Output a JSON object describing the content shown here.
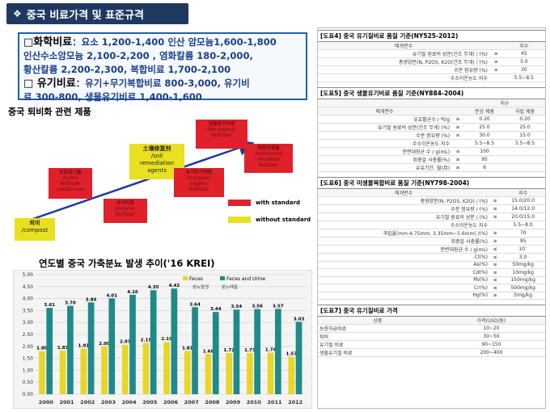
{
  "title": {
    "bullet": "❖",
    "text": "중국 비료가격 및 표준규격"
  },
  "prices": {
    "chem_label": "□화학비료",
    "chem_line1": "：요소 1,200-1,400 인산 암모늄1,600-1,800",
    "chem_line2": "인산수소암모늄 2,100-2,200 , 염화칼륨 180-2,000,",
    "chem_line3": "황산칼륨 2,200-2,300, 복합비료 1,700-2,100",
    "org_label": "□ 유기비료",
    "org_line1": "：유기+무기복합비료 800-3,000,  유기비",
    "org_line2": "료 300-800, 생물유기비료 1,400-1,600"
  },
  "diagram": {
    "label": "중국 퇴비화 관련 제품",
    "boxes": [
      {
        "name": "compost",
        "text": "퇴비\n/compost",
        "color": "yellow"
      },
      {
        "name": "humic",
        "text": "토양유기물\n/humic\nfertilizer\nsubstances",
        "color": "red"
      },
      {
        "name": "organic",
        "text": "유기비료\n/organic\nfertilizer",
        "color": "red"
      },
      {
        "name": "soil",
        "text": "土壤修复剂\n/soil\nremediation\nagents",
        "color": "yellow"
      },
      {
        "name": "bio-organic",
        "text": "생물유기비료\n/bio-organic\nfertilizer",
        "color": "red"
      },
      {
        "name": "inorganic",
        "text": "유기무기복합\n/inorganic\norganic\nfertilizer",
        "color": "red"
      },
      {
        "name": "compound",
        "text": "복합미생물\n/compound\nmicrobial\nfertilizer",
        "color": "red"
      }
    ],
    "legend": {
      "with": "with standard",
      "without": "without standard"
    }
  },
  "chart_data": {
    "type": "bar",
    "title": "연도별 중국 가축분뇨 발생 추이('16 KREI)",
    "categories": [
      "2000",
      "2001",
      "2002",
      "2003",
      "2004",
      "2005",
      "2006",
      "2007",
      "2008",
      "2009",
      "2010",
      "2011",
      "2012"
    ],
    "series": [
      {
        "name": "Feces",
        "values": [
          1.8,
          1.83,
          1.91,
          2.0,
          2.07,
          2.15,
          2.19,
          1.81,
          1.68,
          1.72,
          1.73,
          1.74,
          1.57
        ],
        "color": "#e8d628"
      },
      {
        "name": "Feces and Urine",
        "values": [
          3.61,
          3.7,
          3.84,
          4.01,
          4.16,
          4.35,
          4.42,
          3.64,
          3.44,
          3.54,
          3.56,
          3.57,
          3.03
        ],
        "color": "#1f8a8a"
      }
    ],
    "legend_note1": "분뇨발생",
    "legend_note2": "분뇨배출",
    "ylim": [
      0,
      5
    ],
    "yticks": [
      "0.00",
      "0.50",
      "1.00",
      "1.50",
      "2.00",
      "2.50",
      "3.00",
      "3.50",
      "4.00",
      "4.50",
      "5.00"
    ]
  },
  "standards": {
    "t1": {
      "title": "[도표4] 중국 유기질비료 품질 기준(NY525-2012)",
      "header": [
        "매개변수",
        "",
        "지수"
      ],
      "rows": [
        [
          "유기질 원료의 성분(건조 무게) / (%)",
          "≥",
          "45"
        ],
        [
          "총영양분(N, P2O5, K2O(건조 무게) / (%)",
          "≥",
          "5.0"
        ],
        [
          "수분 함유량 (%)",
          "≤",
          "30"
        ],
        [
          "수소이온농도 지수",
          "",
          "5.5~8.5"
        ]
      ]
    },
    "t2": {
      "title": "[도표5] 중국 생물유기비료 품질 기준(NY884-2004)",
      "header": [
        "매개변수",
        "",
        "분상 제품",
        "과립 제품"
      ],
      "header_top": "지수",
      "rows": [
        [
          "유효활균수 / 억/g",
          "≥",
          "0.20",
          "0.20"
        ],
        [
          "유기질 원료의 성분(건조 무게) (%)",
          "≥",
          "25.0",
          "25.0"
        ],
        [
          "수분 함유량 (%)",
          "≤",
          "30.0",
          "15.0"
        ],
        [
          "수소이온농도 지수",
          "",
          "5.5~8.5",
          "5.5~8.5"
        ],
        [
          "분변대장균 수 / g(mL)",
          "≤",
          "100",
          ""
        ],
        [
          "회충알 사충률(%)",
          "≥",
          "95",
          ""
        ],
        [
          "유효기간, 월(月)",
          "≥",
          "6",
          ""
        ]
      ]
    },
    "t3": {
      "title": "[도표6] 중국 미생물복합비료 품질 기준(NY798-2004)",
      "header": [
        "매개변수",
        "",
        "지수"
      ],
      "rows": [
        [
          "총영양분(N, P2O5, K2O) / (%)",
          "≥",
          "15.0/20.0"
        ],
        [
          "수분 함유량 / (%)",
          "≤",
          "14.0/12.0"
        ],
        [
          "유기질 원료의 성분 / (%)",
          "≥",
          "20.0/15.0"
        ],
        [
          "수소이온농도 지수",
          "",
          "5.5~8.0"
        ],
        [
          "과립율(mm-4.75mm, 3.35mm~5.6mm) /(%)",
          "≥",
          "70"
        ],
        [
          "회충알 사충률(%)",
          "≥",
          "95"
        ],
        [
          "분변대장균 수 / g(mL)",
          "≤",
          "10⁻"
        ],
        [
          "Cl(%)",
          "≤",
          "3.0"
        ],
        [
          "As(%)",
          "≤",
          "50mg/kg"
        ],
        [
          "Cd(%)",
          "≤",
          "10mg/kg"
        ],
        [
          "Pb(%)",
          "≤",
          "150mg/kg"
        ],
        [
          "Cr(%)",
          "≤",
          "500mg/kg"
        ],
        [
          "Hg(%)",
          "≤",
          "5mg/kg"
        ]
      ]
    },
    "t4": {
      "title": "[도표7] 중국 유기질비료 가격",
      "header": [
        "상품",
        "가격(USD/톤)"
      ],
      "rows": [
        [
          "농장자급비료",
          "10~20"
        ],
        [
          "퇴비",
          "30~50"
        ],
        [
          "유기질 비료",
          "90~150"
        ],
        [
          "생물유기질 비료",
          "200~400"
        ]
      ]
    }
  }
}
